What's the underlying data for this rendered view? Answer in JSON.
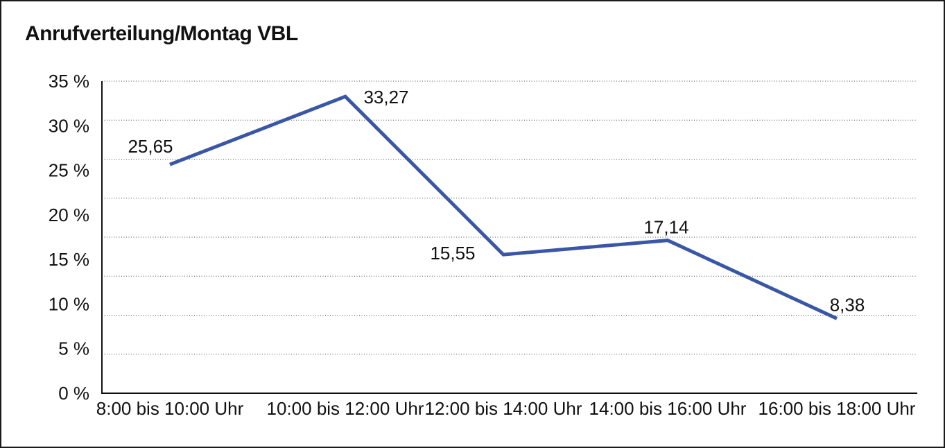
{
  "chart_data": {
    "type": "line",
    "title": "Anrufverteilung/Montag VBL",
    "categories": [
      "8:00 bis 10:00 Uhr",
      "10:00 bis 12:00 Uhr",
      "12:00 bis 14:00 Uhr",
      "14:00 bis 16:00 Uhr",
      "16:00 bis 18:00 Uhr"
    ],
    "values": [
      25.65,
      33.27,
      15.55,
      17.14,
      8.38
    ],
    "value_labels": [
      "25,65",
      "33,27",
      "15,55",
      "17,14",
      "8,38"
    ],
    "xlabel": "",
    "ylabel": "",
    "y_ticks": [
      {
        "value": 35,
        "label": "35 %"
      },
      {
        "value": 30,
        "label": "30 %"
      },
      {
        "value": 25,
        "label": "25 %"
      },
      {
        "value": 20,
        "label": "20 %"
      },
      {
        "value": 15,
        "label": "15 %"
      },
      {
        "value": 10,
        "label": "10 %"
      },
      {
        "value": 5,
        "label": "5 %"
      },
      {
        "value": 0,
        "label": "0 %"
      }
    ],
    "ylim": [
      0,
      35
    ],
    "grid": "horizontal-dotted",
    "grid_divisions": 8,
    "legend": "none",
    "colors": {
      "line": "#3A57A6",
      "grid": "#4d4d4d",
      "axis": "#111111",
      "border": "#1a1a1a",
      "text": "#111111"
    }
  }
}
